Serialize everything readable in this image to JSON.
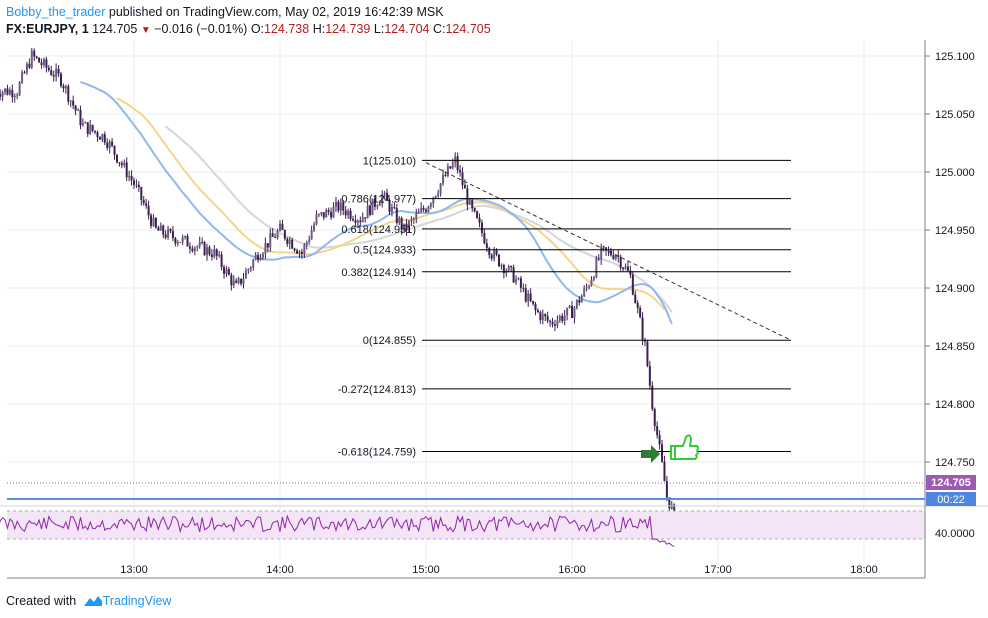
{
  "header": {
    "author": "Bobby_the_trader",
    "published_text": " published on TradingView.com, May 02, 2019 16:42:39 MSK"
  },
  "symbol_line": {
    "symbol": "FX:EURJPY, 1",
    "price": "124.705",
    "change": "−0.016 (−0.01%)",
    "o_label": "O:",
    "o_value": "124.738",
    "h_label": "H:",
    "h_value": "124.739",
    "l_label": "L:",
    "l_value": "124.704",
    "c_label": "C:",
    "c_value": "124.705"
  },
  "price_scale": {
    "labels": [
      "125.100",
      "125.050",
      "125.000",
      "124.950",
      "124.900",
      "124.850",
      "124.800",
      "124.750"
    ],
    "current_price_label": "124.705",
    "countdown_label": "00:22"
  },
  "rsi_scale": {
    "label": "40.0000"
  },
  "time_scale": {
    "labels": [
      "13:00",
      "14:00",
      "15:00",
      "16:00",
      "17:00",
      "18:00"
    ]
  },
  "fibonacci": [
    {
      "label": "1(125.010)"
    },
    {
      "label": "0.786(124.977)"
    },
    {
      "label": "0.618(124.951)"
    },
    {
      "label": "0.5(124.933)"
    },
    {
      "label": "0.382(124.914)"
    },
    {
      "label": "0(124.855)"
    },
    {
      "label": "-0.272(124.813)"
    },
    {
      "label": "-0.618(124.759)"
    }
  ],
  "footer": {
    "created_with": "Created with",
    "brand": "TradingView"
  },
  "colors": {
    "grid": "#e9edf3",
    "candle": "#3b1f4f",
    "ma_blue": "#90b8ef",
    "ma_yellow": "#f3d68b",
    "ma_gray": "#d6d6d6",
    "fib_line": "#000000",
    "rsi_line": "#8e24aa",
    "rsi_band": "#f3e5f5",
    "current_price_bg": "#9c5ab0",
    "hline_blue": "#2962ff",
    "arrow_green": "#2e7d32",
    "thumb_green": "#33cc33"
  },
  "chart_data": {
    "type": "candlestick",
    "symbol": "FX:EURJPY",
    "interval": "1",
    "y_range": [
      124.69,
      125.12
    ],
    "x_labels": [
      "13:00",
      "14:00",
      "15:00",
      "16:00",
      "17:00",
      "18:00"
    ],
    "last": {
      "open": 124.738,
      "high": 124.739,
      "low": 124.704,
      "close": 124.705
    },
    "price_path": [
      [
        12.2,
        125.07
      ],
      [
        12.3,
        125.1
      ],
      [
        12.5,
        125.08
      ],
      [
        12.65,
        125.04
      ],
      [
        12.8,
        125.03
      ],
      [
        13.0,
        124.99
      ],
      [
        13.15,
        124.95
      ],
      [
        13.35,
        124.94
      ],
      [
        13.55,
        124.93
      ],
      [
        13.7,
        124.9
      ],
      [
        13.85,
        124.93
      ],
      [
        14.0,
        124.95
      ],
      [
        14.15,
        124.93
      ],
      [
        14.25,
        124.96
      ],
      [
        14.4,
        124.97
      ],
      [
        14.55,
        124.96
      ],
      [
        14.7,
        124.98
      ],
      [
        14.85,
        124.95
      ],
      [
        15.0,
        124.97
      ],
      [
        15.1,
        124.99
      ],
      [
        15.2,
        125.01
      ],
      [
        15.3,
        124.97
      ],
      [
        15.45,
        124.93
      ],
      [
        15.6,
        124.91
      ],
      [
        15.75,
        124.88
      ],
      [
        15.85,
        124.87
      ],
      [
        16.0,
        124.88
      ],
      [
        16.1,
        124.9
      ],
      [
        16.2,
        124.93
      ],
      [
        16.3,
        124.93
      ],
      [
        16.4,
        124.91
      ],
      [
        16.5,
        124.85
      ],
      [
        16.55,
        124.8
      ],
      [
        16.6,
        124.76
      ],
      [
        16.65,
        124.72
      ],
      [
        16.7,
        124.705
      ]
    ],
    "fib_levels": [
      {
        "ratio": 1,
        "price": 125.01
      },
      {
        "ratio": 0.786,
        "price": 124.977
      },
      {
        "ratio": 0.618,
        "price": 124.951
      },
      {
        "ratio": 0.5,
        "price": 124.933
      },
      {
        "ratio": 0.382,
        "price": 124.914
      },
      {
        "ratio": 0,
        "price": 124.855
      },
      {
        "ratio": -0.272,
        "price": 124.813
      },
      {
        "ratio": -0.618,
        "price": 124.759
      }
    ],
    "trendline": [
      [
        15.0,
        125.008
      ],
      [
        17.5,
        124.855
      ]
    ],
    "rsi_level": 40
  }
}
